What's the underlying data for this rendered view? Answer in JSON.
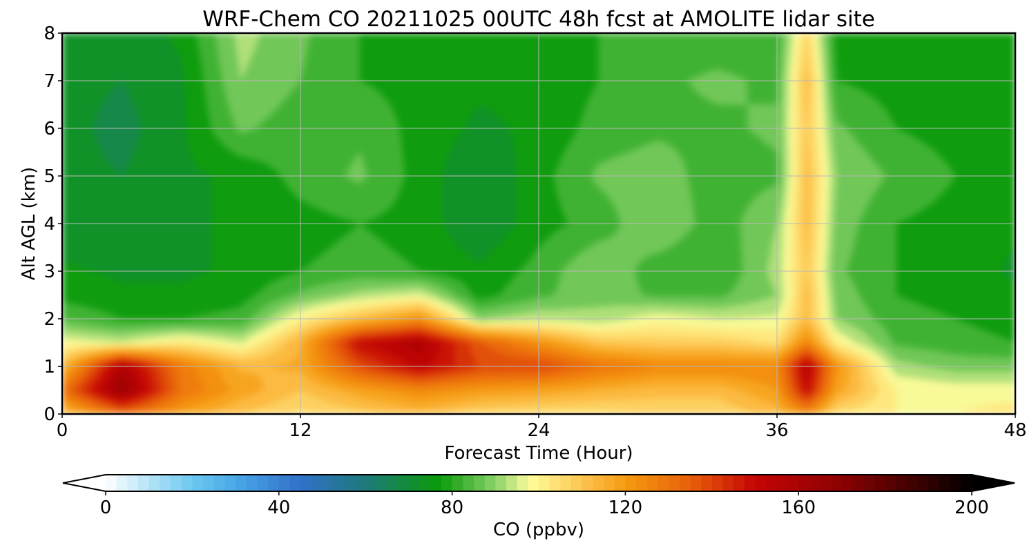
{
  "chart_data": {
    "type": "heatmap",
    "variant": "filled-contour time-height cross section",
    "title": "WRF-Chem CO  20211025 00UTC 48h fcst at AMOLITE lidar site",
    "xlabel": "Forecast Time (Hour)",
    "ylabel": "Alt AGL (km)",
    "xlim": [
      0,
      48
    ],
    "ylim": [
      0,
      8
    ],
    "xticks": [
      0,
      12,
      24,
      36,
      48
    ],
    "yticks": [
      0,
      1,
      2,
      3,
      4,
      5,
      6,
      7,
      8
    ],
    "grid": true,
    "colorbar": {
      "label": "CO  (ppbv)",
      "orientation": "horizontal",
      "placement": "bottom",
      "min": 0,
      "max": 200,
      "ticks": [
        0,
        40,
        80,
        120,
        160,
        200
      ],
      "extend": "both",
      "stops": [
        {
          "value": 0,
          "color": "#ffffff"
        },
        {
          "value": 20,
          "color": "#6cc8f0"
        },
        {
          "value": 30,
          "color": "#4aa8e8"
        },
        {
          "value": 45,
          "color": "#3070c8"
        },
        {
          "value": 60,
          "color": "#1f7a7a"
        },
        {
          "value": 77,
          "color": "#0a9a0a"
        },
        {
          "value": 90,
          "color": "#8ad26a"
        },
        {
          "value": 98,
          "color": "#fffd9a"
        },
        {
          "value": 112,
          "color": "#fcbc44"
        },
        {
          "value": 120,
          "color": "#f59a10"
        },
        {
          "value": 135,
          "color": "#e8600a"
        },
        {
          "value": 150,
          "color": "#c40404"
        },
        {
          "value": 170,
          "color": "#8c0202"
        },
        {
          "value": 200,
          "color": "#000000"
        }
      ]
    },
    "time_hours": [
      0,
      3,
      6,
      9,
      12,
      15,
      18,
      21,
      24,
      27,
      30,
      33,
      36,
      37.5,
      39,
      42,
      45,
      48
    ],
    "altitude_km": [
      0,
      0.5,
      1,
      1.5,
      2,
      2.5,
      3,
      4,
      5,
      6,
      7,
      8
    ],
    "co_ppbv": [
      [
        110,
        130,
        118,
        110,
        104,
        108,
        112,
        106,
        104,
        104,
        106,
        106,
        112,
        122,
        104,
        100,
        100,
        102
      ],
      [
        130,
        165,
        130,
        118,
        110,
        118,
        124,
        120,
        118,
        115,
        112,
        112,
        120,
        150,
        118,
        100,
        98,
        98
      ],
      [
        112,
        158,
        128,
        114,
        116,
        138,
        152,
        140,
        140,
        130,
        125,
        125,
        125,
        155,
        122,
        92,
        88,
        88
      ],
      [
        98,
        95,
        102,
        95,
        115,
        150,
        158,
        136,
        122,
        110,
        108,
        108,
        104,
        125,
        100,
        84,
        82,
        80
      ],
      [
        85,
        80,
        80,
        82,
        100,
        112,
        122,
        90,
        94,
        92,
        98,
        95,
        96,
        112,
        90,
        82,
        80,
        78
      ],
      [
        78,
        76,
        76,
        78,
        86,
        92,
        96,
        78,
        84,
        88,
        84,
        84,
        90,
        112,
        88,
        80,
        78,
        76
      ],
      [
        76,
        74,
        74,
        76,
        80,
        82,
        80,
        76,
        82,
        90,
        82,
        80,
        92,
        110,
        86,
        80,
        78,
        74
      ],
      [
        70,
        72,
        74,
        76,
        78,
        80,
        78,
        70,
        78,
        82,
        90,
        82,
        90,
        112,
        88,
        80,
        78,
        76
      ],
      [
        72,
        70,
        74,
        76,
        82,
        86,
        78,
        70,
        78,
        86,
        88,
        82,
        84,
        112,
        90,
        84,
        80,
        76
      ],
      [
        72,
        68,
        74,
        86,
        82,
        84,
        78,
        74,
        76,
        82,
        84,
        84,
        86,
        110,
        86,
        80,
        78,
        76
      ],
      [
        72,
        70,
        74,
        90,
        85,
        80,
        78,
        76,
        76,
        80,
        84,
        86,
        84,
        112,
        80,
        78,
        76,
        78
      ],
      [
        74,
        72,
        76,
        92,
        86,
        80,
        78,
        76,
        78,
        80,
        82,
        82,
        82,
        106,
        78,
        76,
        76,
        78
      ]
    ]
  }
}
